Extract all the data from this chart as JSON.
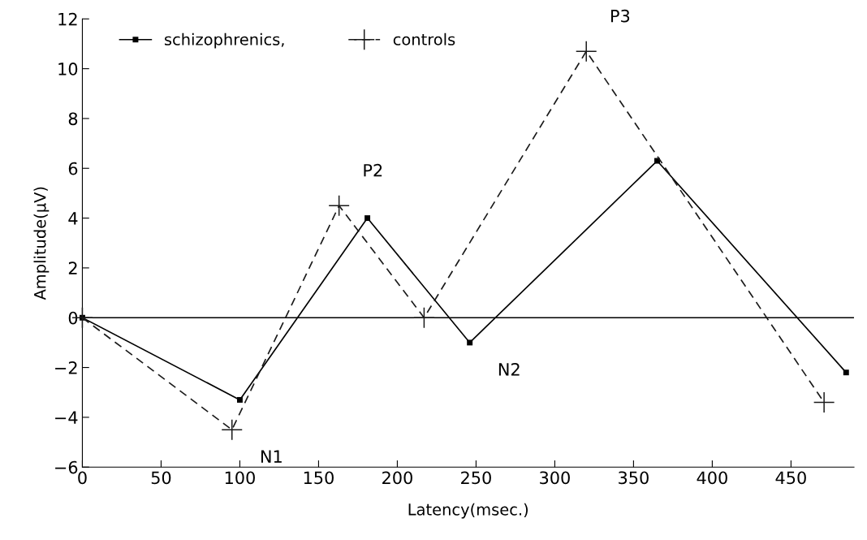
{
  "chart_data": {
    "type": "line",
    "xlabel": "Latency(msec.)",
    "ylabel": "Amplitude(μV)",
    "xlim": [
      0,
      490
    ],
    "ylim": [
      -6,
      12
    ],
    "xticks": [
      0,
      50,
      100,
      150,
      200,
      250,
      300,
      350,
      400,
      450
    ],
    "yticks": [
      {
        "value": -6,
        "label": "−6"
      },
      {
        "value": -4,
        "label": "−4"
      },
      {
        "value": -2,
        "label": "−2"
      },
      0,
      2,
      4,
      6,
      8,
      10,
      12
    ],
    "series": [
      {
        "name": "schizophrenics,",
        "color": "#000000",
        "marker": "square",
        "line_style": "solid",
        "x": [
          0,
          100,
          181,
          246,
          365,
          485
        ],
        "values": [
          0,
          -3.3,
          4.0,
          -1.0,
          6.3,
          -2.2
        ]
      },
      {
        "name": "controls",
        "color": "#1a1a1a",
        "marker": "cross",
        "line_style": "dashed",
        "x": [
          0,
          95,
          163,
          217,
          320,
          471
        ],
        "values": [
          0,
          -4.5,
          4.5,
          0,
          10.7,
          -3.4
        ]
      }
    ],
    "ref_lines": [
      {
        "axis": "y",
        "value": 0,
        "color": "#000000"
      }
    ],
    "annotations": [
      {
        "text": "N1",
        "x": 95,
        "y": -4.5
      },
      {
        "text": "P2",
        "x": 163,
        "y": 4.5
      },
      {
        "text": "N2",
        "x": 246,
        "y": -1.0
      },
      {
        "text": "P3",
        "x": 320,
        "y": 10.7
      }
    ],
    "legend": "top left",
    "grid": false
  }
}
